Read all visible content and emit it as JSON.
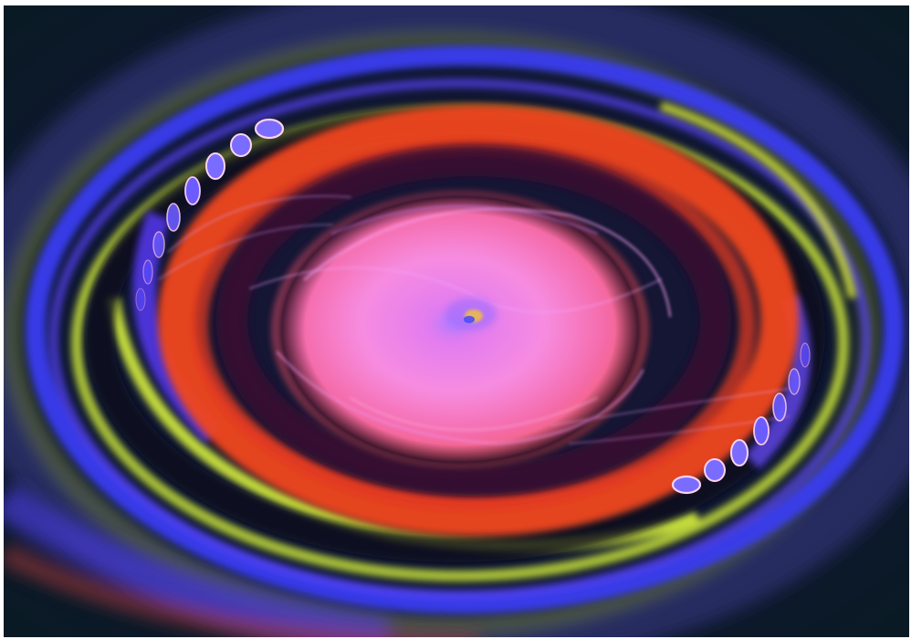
{
  "image": {
    "subject": "light-painting-swirl",
    "colors": {
      "background": "#0d1426",
      "outer_blue": "#3a3cf0",
      "yellow_green": "#c8e23a",
      "orange_red": "#f0461e",
      "magenta_glow": "#f06ad2",
      "pink_core": "#f78ce0",
      "violet": "#7b3cff",
      "bead_fill": "#7a6cff",
      "bead_ring": "#ffd2ee"
    }
  }
}
